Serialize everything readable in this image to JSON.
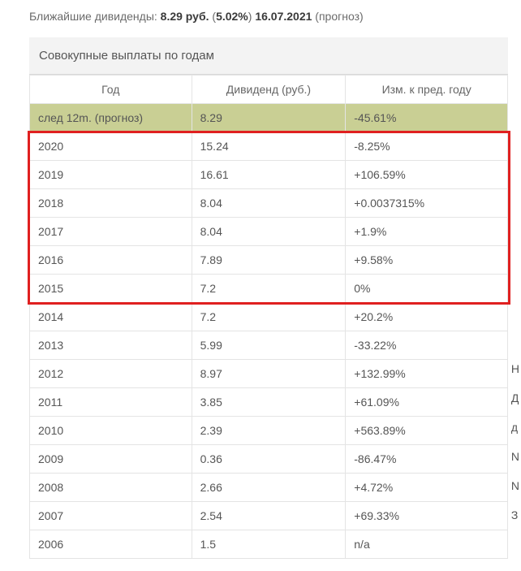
{
  "heading": {
    "prefix": "Ближайшие дивиденды:",
    "amount": "8.29 руб.",
    "pct_open": "(",
    "pct": "5.02%",
    "pct_close": ")",
    "date": "16.07.2021",
    "note": "(прогноз)"
  },
  "table": {
    "caption": "Совокупные выплаты по годам",
    "columns": {
      "year": "Год",
      "dividend": "Дивиденд (руб.)",
      "change": "Изм. к пред. году"
    },
    "forecast_row": {
      "year": "след 12m. (прогноз)",
      "dividend": "8.29",
      "change": "-45.61%",
      "change_sign": "neg"
    },
    "rows": [
      {
        "year": "2020",
        "dividend": "15.24",
        "change": "-8.25%",
        "change_sign": "neg"
      },
      {
        "year": "2019",
        "dividend": "16.61",
        "change": "+106.59%",
        "change_sign": "pos"
      },
      {
        "year": "2018",
        "dividend": "8.04",
        "change": "+0.0037315%",
        "change_sign": "pos"
      },
      {
        "year": "2017",
        "dividend": "8.04",
        "change": "+1.9%",
        "change_sign": "pos"
      },
      {
        "year": "2016",
        "dividend": "7.89",
        "change": "+9.58%",
        "change_sign": "pos"
      },
      {
        "year": "2015",
        "dividend": "7.2",
        "change": "0%",
        "change_sign": "pos"
      },
      {
        "year": "2014",
        "dividend": "7.2",
        "change": "+20.2%",
        "change_sign": "pos"
      },
      {
        "year": "2013",
        "dividend": "5.99",
        "change": "-33.22%",
        "change_sign": "neg"
      },
      {
        "year": "2012",
        "dividend": "8.97",
        "change": "+132.99%",
        "change_sign": "pos"
      },
      {
        "year": "2011",
        "dividend": "3.85",
        "change": "+61.09%",
        "change_sign": "pos"
      },
      {
        "year": "2010",
        "dividend": "2.39",
        "change": "+563.89%",
        "change_sign": "pos"
      },
      {
        "year": "2009",
        "dividend": "0.36",
        "change": "-86.47%",
        "change_sign": "neg"
      },
      {
        "year": "2008",
        "dividend": "2.66",
        "change": "+4.72%",
        "change_sign": "pos"
      },
      {
        "year": "2007",
        "dividend": "2.54",
        "change": "+69.33%",
        "change_sign": "pos"
      },
      {
        "year": "2006",
        "dividend": "1.5",
        "change": "n/a",
        "change_sign": "na"
      }
    ],
    "highlight": {
      "from_index": 0,
      "to_index": 5
    }
  },
  "colors": {
    "neg": "#d33c2f",
    "pos": "#3f9142",
    "na": "#6b6b6b",
    "forecast_bg": "#c9cf94",
    "border": "#e4e4e4",
    "highlight_border": "#e02020"
  },
  "right_fragments": [
    "Н",
    "Д",
    "д",
    "N",
    "N",
    "З"
  ]
}
